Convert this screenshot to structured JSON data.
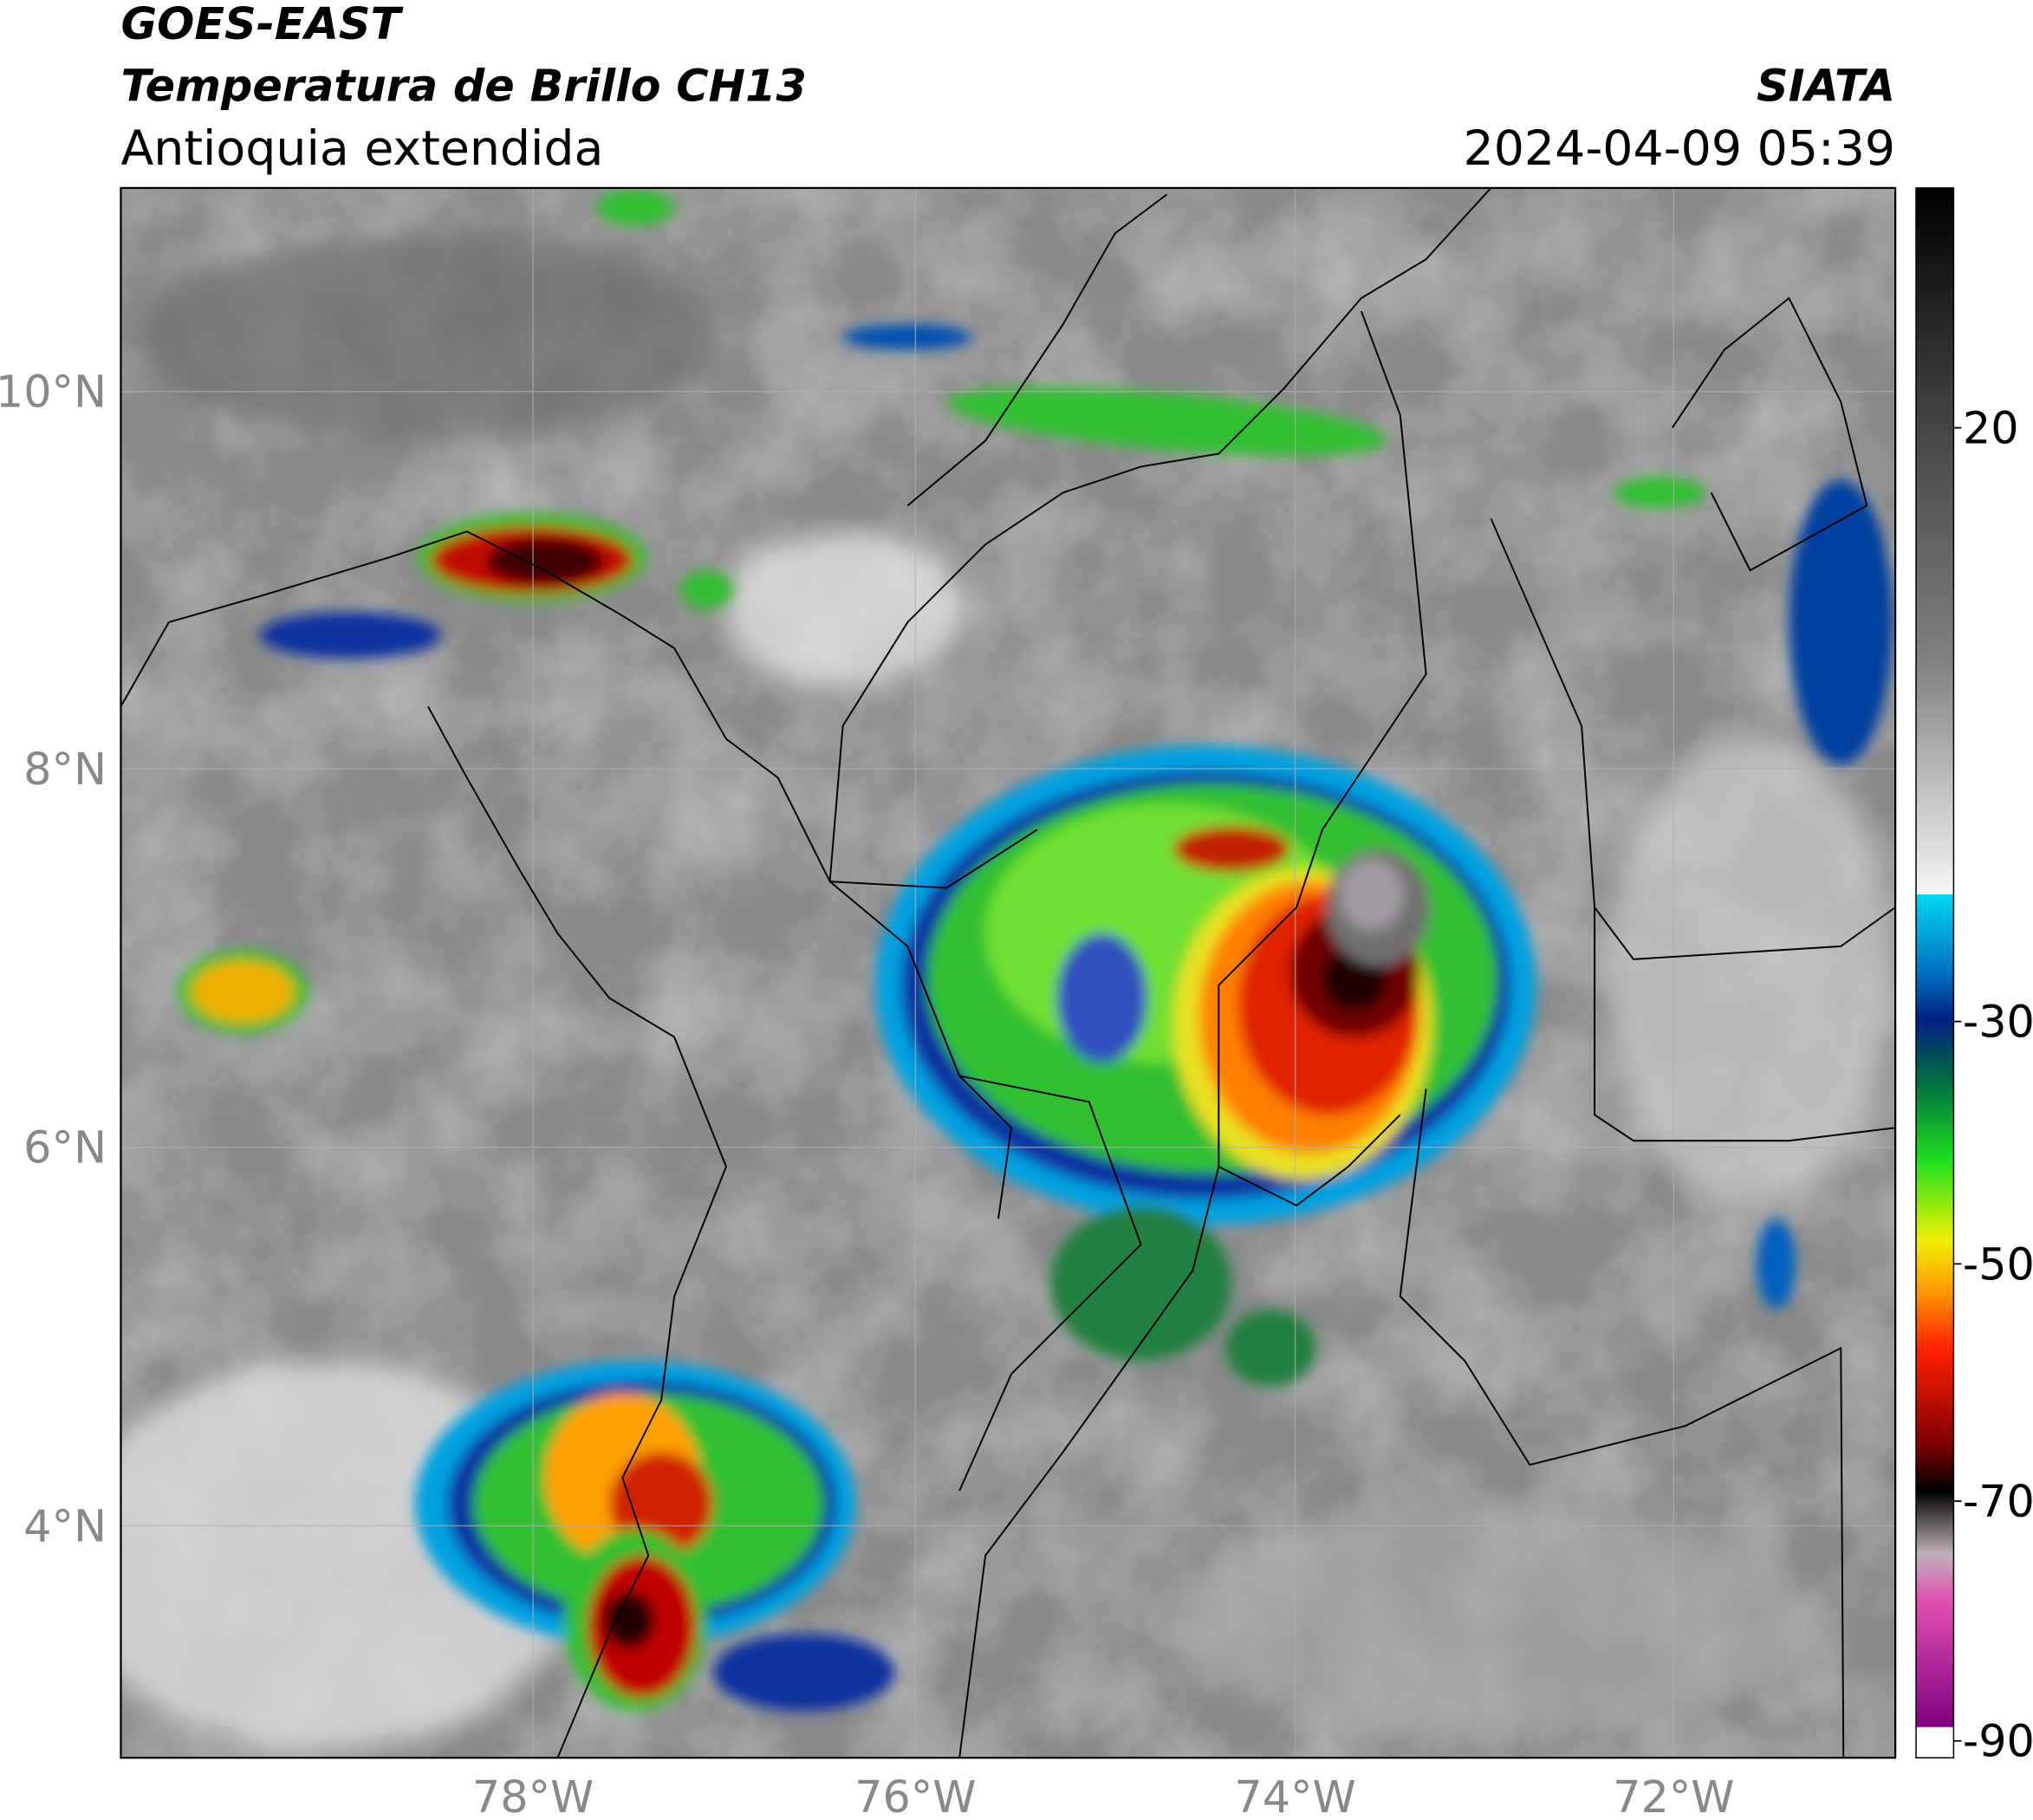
{
  "header": {
    "satellite": "GOES-EAST",
    "product": "Temperatura de Brillo CH13",
    "region": "Antioquia extendida",
    "agency": "SIATA",
    "datetime": "2024-04-09 05:39"
  },
  "map": {
    "lat_labels": [
      "10°N",
      "8°N",
      "6°N",
      "4°N"
    ],
    "lon_labels": [
      "78°W",
      "76°W",
      "74°W",
      "72°W"
    ]
  },
  "colorbar": {
    "ticks": [
      20,
      -30,
      -50,
      -70,
      -90
    ]
  }
}
